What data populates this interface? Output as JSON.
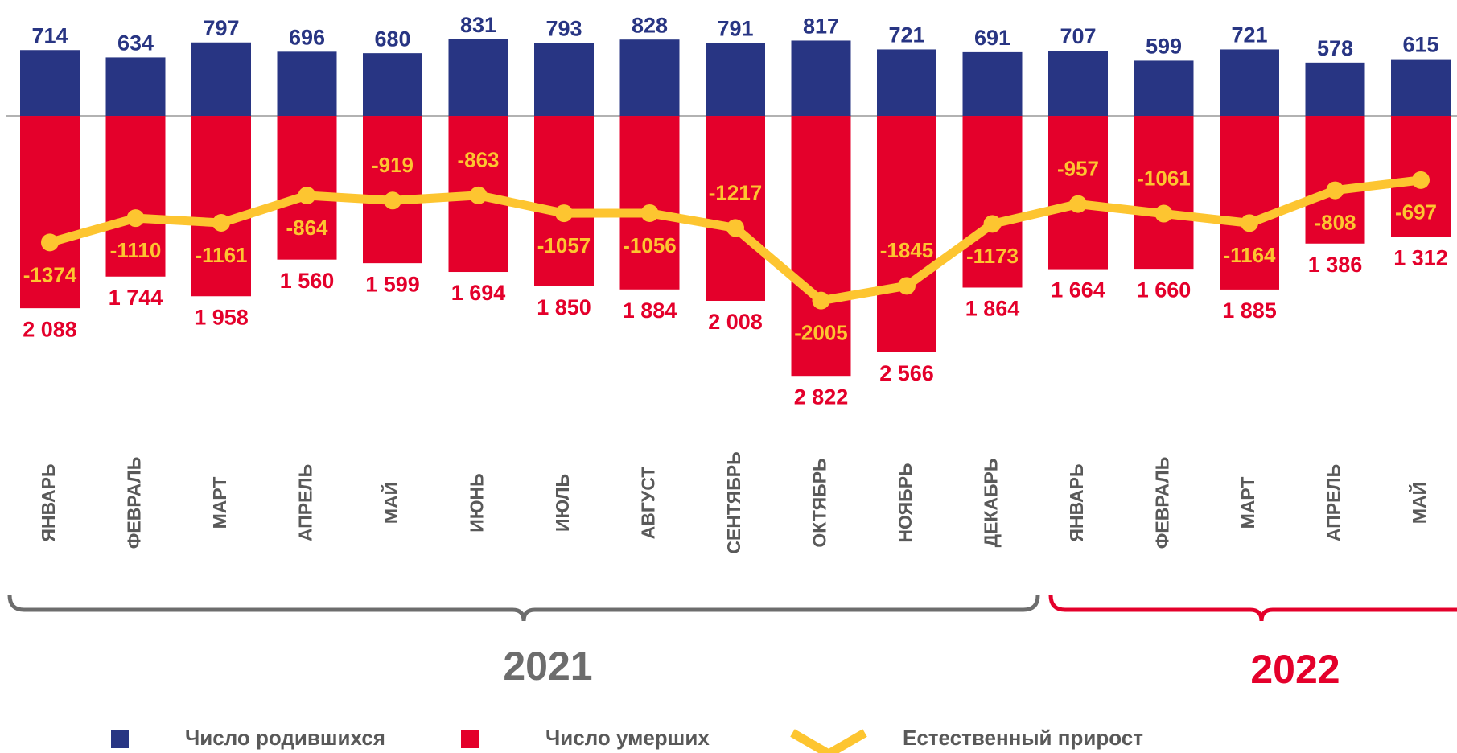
{
  "chart_data": {
    "type": "bar-line",
    "categories": [
      "ЯНВАРЬ",
      "ФЕВРАЛЬ",
      "МАРТ",
      "АПРЕЛЬ",
      "МАЙ",
      "ИЮНЬ",
      "ИЮЛЬ",
      "АВГУСТ",
      "СЕНТЯБРЬ",
      "ОКТЯБРЬ",
      "НОЯБРЬ",
      "ДЕКАБРЬ",
      "ЯНВАРЬ",
      "ФЕВРАЛЬ",
      "МАРТ",
      "АПРЕЛЬ",
      "МАЙ"
    ],
    "ylim": [
      -3000,
      1200
    ],
    "series": [
      {
        "name": "Число родившихся",
        "color": "#283583",
        "type": "bar",
        "values": [
          714,
          634,
          797,
          696,
          680,
          831,
          793,
          828,
          791,
          817,
          721,
          691,
          707,
          599,
          721,
          578,
          615
        ]
      },
      {
        "name": "Число умерших",
        "color": "#e4002b",
        "type": "bar-down",
        "values": [
          2088,
          1744,
          1958,
          1560,
          1599,
          1694,
          1850,
          1884,
          2008,
          2822,
          2566,
          1864,
          1664,
          1660,
          1885,
          1386,
          1312
        ],
        "value_labels": [
          "2 088",
          "1 744",
          "1 958",
          "1 560",
          "1 599",
          "1 694",
          "1 850",
          "1 884",
          "2 008",
          "2 822",
          "2 566",
          "1 864",
          "1 664",
          "1 660",
          "1 885",
          "1 386",
          "1 312"
        ]
      },
      {
        "name": "Естественный прирост",
        "color": "#fdc530",
        "type": "line",
        "values": [
          -1374,
          -1110,
          -1161,
          -864,
          -919,
          -863,
          -1057,
          -1056,
          -1217,
          -2005,
          -1845,
          -1173,
          -957,
          -1061,
          -1164,
          -808,
          -697
        ]
      }
    ],
    "groups": [
      {
        "label": "2021",
        "color": "#6d6d6d"
      },
      {
        "label": "2022",
        "color": "#e4002b"
      }
    ]
  }
}
